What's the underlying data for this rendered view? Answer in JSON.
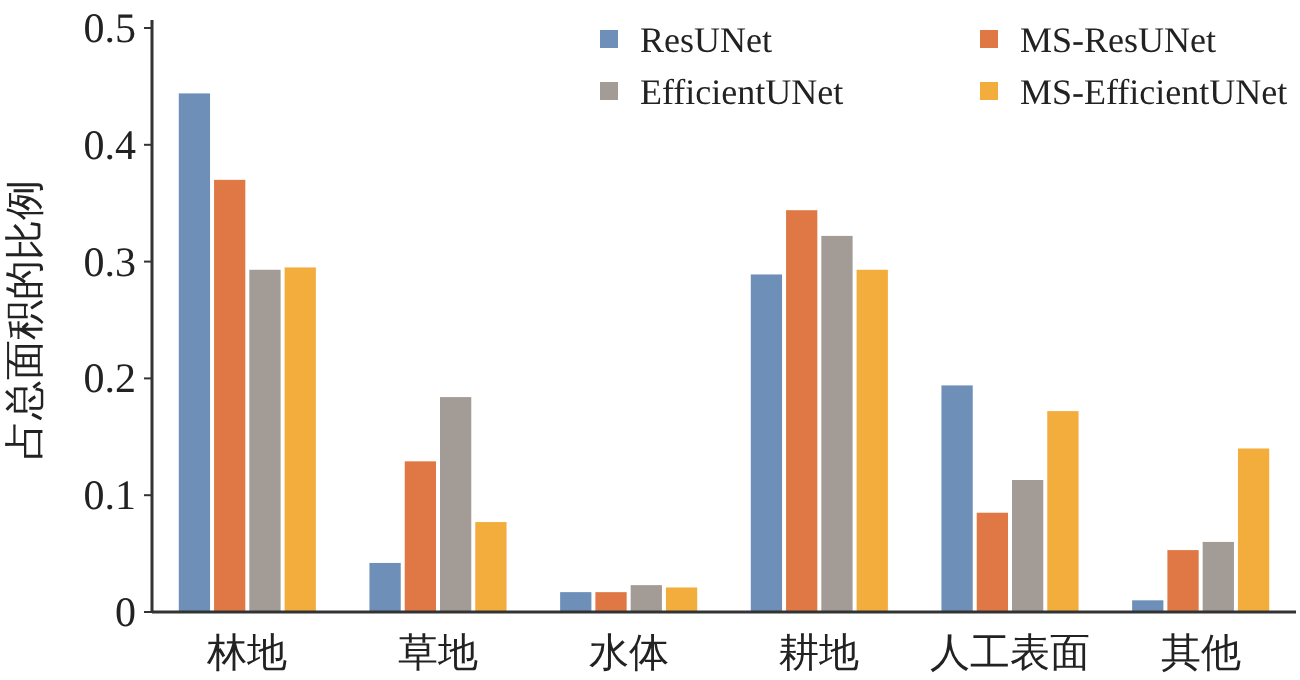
{
  "chart_data": {
    "type": "bar",
    "ylabel": "占总面积的比例",
    "categories": [
      "林地",
      "草地",
      "水体",
      "耕地",
      "人工表面",
      "其他"
    ],
    "series": [
      {
        "name": "ResUNet",
        "color": "#6d8fb8",
        "values": [
          0.444,
          0.042,
          0.017,
          0.289,
          0.194,
          0.01
        ]
      },
      {
        "name": "MS-ResUNet",
        "color": "#e07846",
        "values": [
          0.37,
          0.129,
          0.017,
          0.344,
          0.085,
          0.053
        ]
      },
      {
        "name": "EfficientUNet",
        "color": "#a39b96",
        "values": [
          0.293,
          0.184,
          0.023,
          0.322,
          0.113,
          0.06
        ]
      },
      {
        "name": "MS-EfficientUNet",
        "color": "#f2ad3c",
        "values": [
          0.295,
          0.077,
          0.021,
          0.293,
          0.172,
          0.14
        ]
      }
    ],
    "ylim": [
      0,
      0.5
    ],
    "yticks": [
      0,
      0.1,
      0.2,
      0.3,
      0.4,
      0.5
    ],
    "legend": "top right"
  }
}
